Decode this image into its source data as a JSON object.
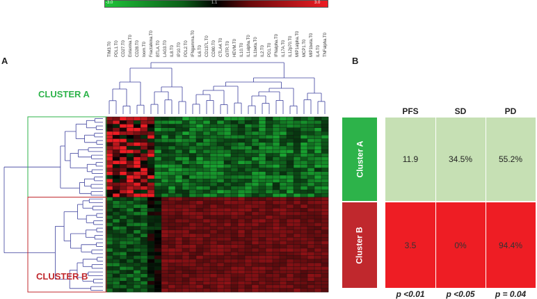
{
  "color_scale": {
    "min_label": "-3.0",
    "mid_label": "1.1",
    "max_label": "3.0",
    "low_color": "#22c03a",
    "mid_color": "#000000",
    "high_color": "#e8242a"
  },
  "heatmap": {
    "columns": [
      "TIM3.T0",
      "PDL1.T0",
      "CD27.T0",
      "Eotaxina.T0",
      "CD28.T0",
      "Ioom.T0",
      "Fractalkina.T0",
      "BTLA.T0",
      "LAG3.T0",
      "IL8.T0",
      "IP10.T0",
      "PDL2.T0",
      "IFNgamma.T0",
      "IL6.T0",
      "CD137L.T0",
      "CD80.T0",
      "CTLA4.T0",
      "GITR.T0",
      "HEVM.T0",
      "IL10.T0",
      "IL1alpha.T0",
      "IL1beta.T0",
      "IL2.T0",
      "PD1.T0",
      "IFNalpha.T0",
      "IL17A.T0",
      "IL12p70.T0",
      "MIP1alpha.T0",
      "MCP1.T0",
      "MIP1beta.T0",
      "IL4.T0",
      "TNFalpha.T0"
    ],
    "rows_cluster_a": 22,
    "rows_cluster_b": 26
  },
  "panel_a": {
    "letter": "A",
    "cluster_a_label": "CLUSTER A",
    "cluster_b_label": "CLUSTER B",
    "cluster_a_color": "#2db34a",
    "cluster_b_color": "#c0282d"
  },
  "panel_b": {
    "letter": "B",
    "headers": [
      "PFS",
      "SD",
      "PD"
    ],
    "rows": [
      {
        "label": "Cluster A",
        "values": [
          "11.9",
          "34.5%",
          "55.2%"
        ],
        "bar_color": "#2db34a",
        "fill_color": "#c6e0b4"
      },
      {
        "label": "Cluster B",
        "values": [
          "3.5",
          "0%",
          "94.4%"
        ],
        "bar_color": "#c0282d",
        "fill_color": "#ee1d24"
      }
    ],
    "pvalues": [
      "p  <0.01",
      "p <0.05",
      "p = 0.04"
    ]
  }
}
